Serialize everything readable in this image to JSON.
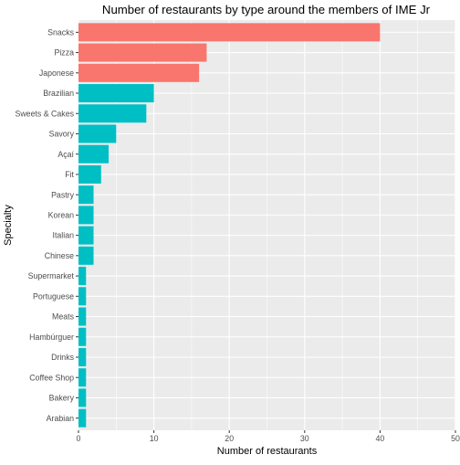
{
  "chart_data": {
    "type": "bar",
    "orientation": "horizontal",
    "title": "Number of restaurants by type around the members of IME Jr",
    "xlabel": "Number of restaurants",
    "ylabel": "Specialty",
    "xlim": [
      0,
      50
    ],
    "x_ticks": [
      0,
      10,
      20,
      30,
      40,
      50
    ],
    "grid": true,
    "legend": "none",
    "categories": [
      "Snacks",
      "Pizza",
      "Japonese",
      "Brazilian",
      "Sweets & Cakes",
      "Savory",
      "Açaí",
      "Fit",
      "Pastry",
      "Korean",
      "Italian",
      "Chinese",
      "Supermarket",
      "Portuguese",
      "Meats",
      "Hambúrguer",
      "Drinks",
      "Coffee Shop",
      "Bakery",
      "Arabian"
    ],
    "values": [
      40,
      17,
      16,
      10,
      9,
      5,
      4,
      3,
      2,
      2,
      2,
      2,
      1,
      1,
      1,
      1,
      1,
      1,
      1,
      1
    ],
    "highlight_count": 3,
    "colors": {
      "highlight": "#F8766D",
      "default": "#00BFC4",
      "panel_background": "#EBEBEB",
      "grid": "#FFFFFF"
    }
  }
}
